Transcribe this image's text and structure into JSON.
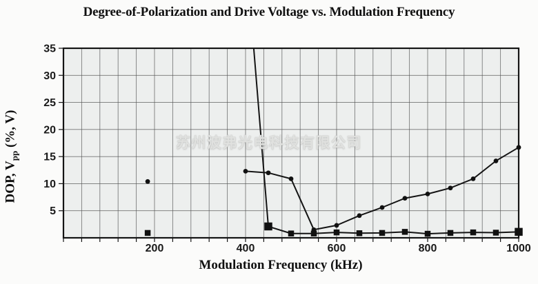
{
  "title": "Degree-of-Polarization and Drive Voltage vs. Modulation Frequency",
  "watermark_text": "苏州波弗光电科技有限公司",
  "chart_data": {
    "type": "line",
    "title": "Degree-of-Polarization and Drive Voltage vs. Modulation Frequency",
    "xlabel": "Modulation Frequency (kHz)",
    "ylabel": {
      "text": "DOP, Vpp (%, V)",
      "parts": {
        "pre": "DOP, V",
        "sub": "pp",
        "post": " (%, V)"
      }
    },
    "xlim": [
      0,
      1000
    ],
    "ylim": [
      0,
      35
    ],
    "x_tick_labels": [
      200,
      400,
      600,
      800,
      1000
    ],
    "x_grid_step_khz": 40,
    "y_tick_labels": [
      5,
      10,
      15,
      20,
      25,
      30,
      35
    ],
    "y_grid_step": 5,
    "grid": true,
    "legend": "none",
    "colors": {
      "line": "#141414",
      "marker": "#111111",
      "grid": "#565656",
      "plot_bg": "#edefee",
      "text": "#1a1a1a"
    },
    "series": [
      {
        "name": "DOP (%)",
        "marker": "circle",
        "isolated_points": [
          [
            185,
            10.4
          ]
        ],
        "points": [
          [
            400,
            12.3
          ],
          [
            450,
            12.0
          ],
          [
            500,
            10.9
          ],
          [
            550,
            1.5
          ],
          [
            600,
            2.3
          ],
          [
            650,
            4.1
          ],
          [
            700,
            5.6
          ],
          [
            750,
            7.3
          ],
          [
            800,
            8.1
          ],
          [
            850,
            9.2
          ],
          [
            900,
            10.9
          ],
          [
            950,
            14.2
          ],
          [
            1000,
            16.7
          ]
        ]
      },
      {
        "name": "Drive Voltage Vpp (V)",
        "marker": "square",
        "isolated_points": [
          [
            185,
            0.9
          ]
        ],
        "entry_from_above": {
          "khz_at_top": 418
        },
        "points": [
          [
            450,
            2.1
          ],
          [
            500,
            0.8
          ],
          [
            550,
            0.8
          ],
          [
            600,
            1.0
          ],
          [
            650,
            0.85
          ],
          [
            700,
            0.9
          ],
          [
            750,
            1.1
          ],
          [
            800,
            0.75
          ],
          [
            850,
            0.9
          ],
          [
            900,
            1.0
          ],
          [
            950,
            0.95
          ],
          [
            1000,
            1.1
          ]
        ]
      }
    ]
  }
}
